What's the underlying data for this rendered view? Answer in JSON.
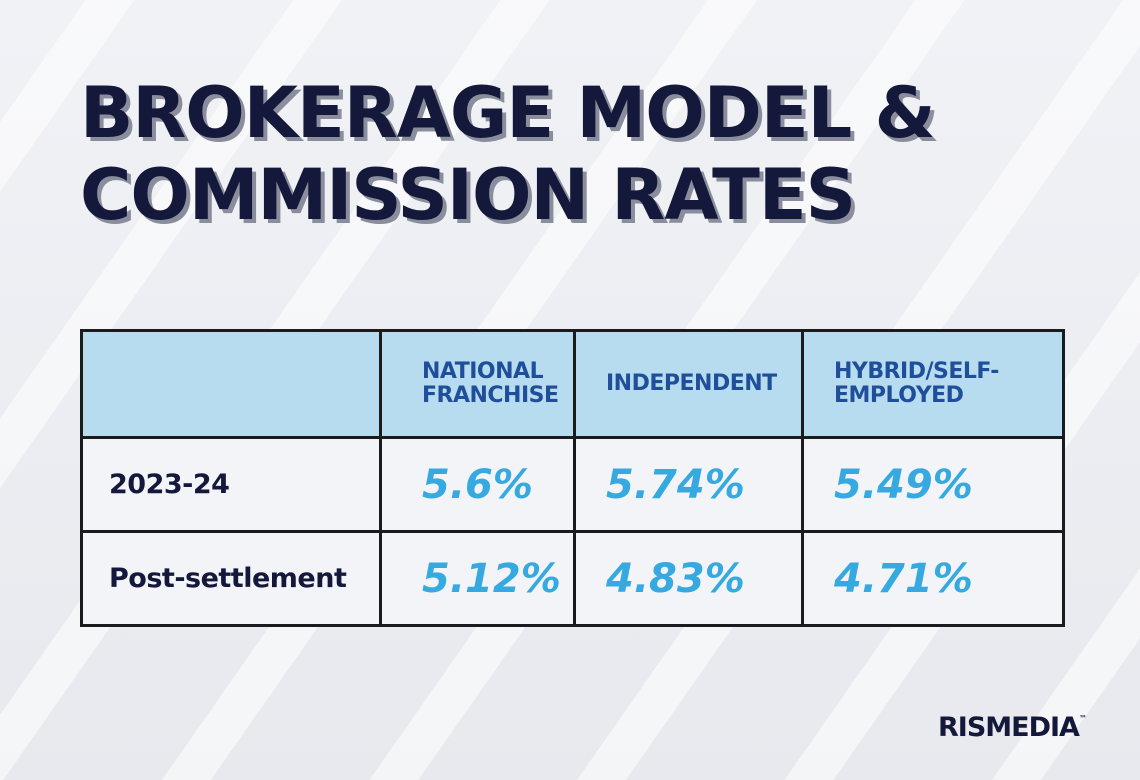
{
  "title": {
    "line1": "BROKERAGE MODEL &",
    "line2": "COMMISSION RATES"
  },
  "chart_data": {
    "type": "table",
    "title": "BROKERAGE MODEL & COMMISSION RATES",
    "columns": [
      "",
      "NATIONAL FRANCHISE",
      "INDEPENDENT",
      "HYBRID/SELF-EMPLOYED"
    ],
    "column_lines": [
      [],
      [
        "NATIONAL",
        "FRANCHISE"
      ],
      [
        "INDEPENDENT"
      ],
      [
        "HYBRID/SELF-",
        "EMPLOYED"
      ]
    ],
    "rows": [
      {
        "label": "2023-24",
        "values": [
          "5.6%",
          "5.74%",
          "5.49%"
        ]
      },
      {
        "label": "Post-settlement",
        "values": [
          "5.12%",
          "4.83%",
          "4.71%"
        ]
      }
    ],
    "header_color": "#b7dbef",
    "value_color": "#35a9e0"
  },
  "brand": {
    "name": "RISMEDIA",
    "mark": "™"
  }
}
